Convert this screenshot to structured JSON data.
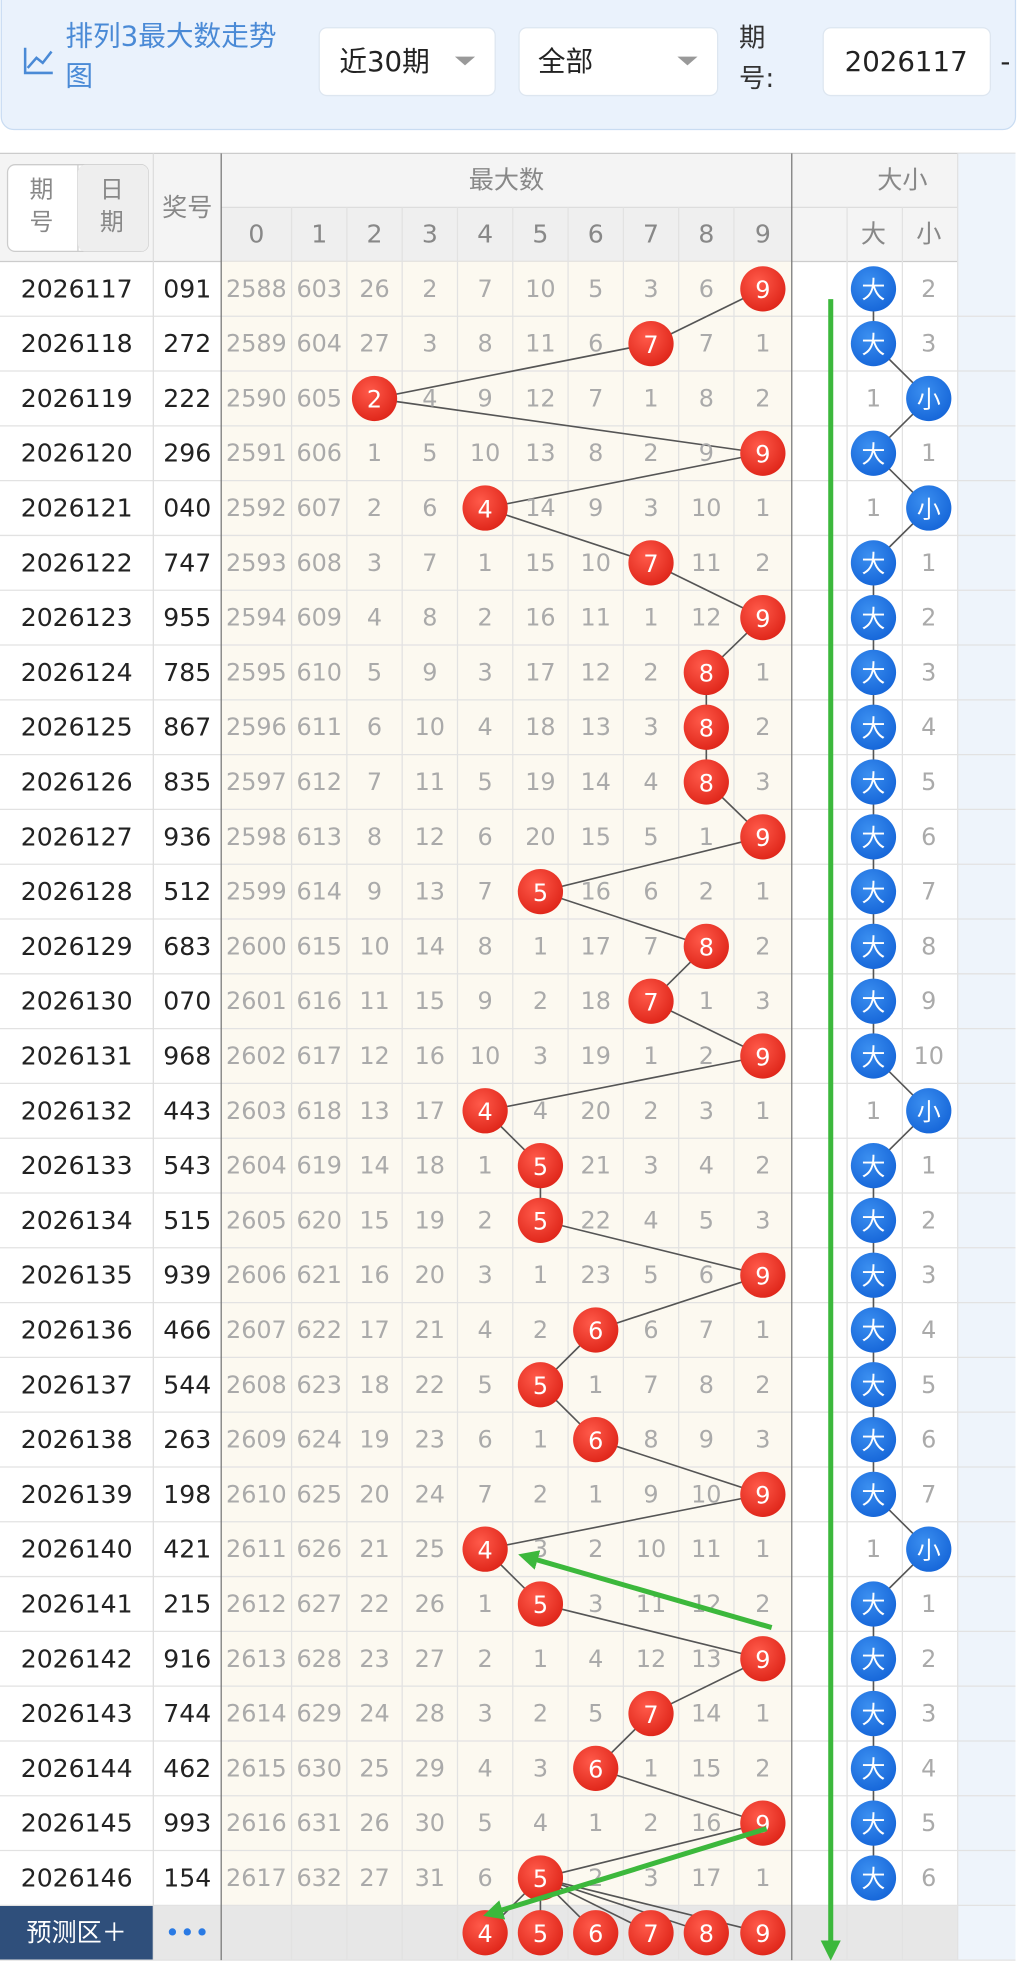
{
  "header": {
    "title": "排列3最大数走势图",
    "range_select": "近30期",
    "filter_select": "全部",
    "issue_label": "期号:",
    "issue_input": "2026117",
    "dash": "-"
  },
  "table": {
    "toggle": [
      "期号",
      "日期"
    ],
    "number_header": "奖号",
    "group_max": "最大数",
    "group_size": "大小",
    "digits": [
      0,
      1,
      2,
      3,
      4,
      5,
      6,
      7,
      8,
      9
    ],
    "size_headers": [
      "大",
      "小"
    ],
    "rows": [
      {
        "period": "2026117",
        "number": "091",
        "max": [
          2588,
          603,
          26,
          2,
          7,
          10,
          5,
          3,
          6,
          {
            "ball": 9
          }
        ],
        "size": [
          "大",
          2
        ]
      },
      {
        "period": "2026118",
        "number": "272",
        "max": [
          2589,
          604,
          27,
          3,
          8,
          11,
          6,
          {
            "ball": 7
          },
          7,
          1
        ],
        "size": [
          "大",
          3
        ]
      },
      {
        "period": "2026119",
        "number": "222",
        "max": [
          2590,
          605,
          {
            "ball": 2
          },
          4,
          9,
          12,
          7,
          1,
          8,
          2
        ],
        "size": [
          1,
          "小"
        ]
      },
      {
        "period": "2026120",
        "number": "296",
        "max": [
          2591,
          606,
          1,
          5,
          10,
          13,
          8,
          2,
          9,
          {
            "ball": 9
          }
        ],
        "size": [
          "大",
          1
        ]
      },
      {
        "period": "2026121",
        "number": "040",
        "max": [
          2592,
          607,
          2,
          6,
          {
            "ball": 4
          },
          14,
          9,
          3,
          10,
          1
        ],
        "size": [
          1,
          "小"
        ]
      },
      {
        "period": "2026122",
        "number": "747",
        "max": [
          2593,
          608,
          3,
          7,
          1,
          15,
          10,
          {
            "ball": 7
          },
          11,
          2
        ],
        "size": [
          "大",
          1
        ]
      },
      {
        "period": "2026123",
        "number": "955",
        "max": [
          2594,
          609,
          4,
          8,
          2,
          16,
          11,
          1,
          12,
          {
            "ball": 9
          }
        ],
        "size": [
          "大",
          2
        ]
      },
      {
        "period": "2026124",
        "number": "785",
        "max": [
          2595,
          610,
          5,
          9,
          3,
          17,
          12,
          2,
          {
            "ball": 8
          },
          1
        ],
        "size": [
          "大",
          3
        ]
      },
      {
        "period": "2026125",
        "number": "867",
        "max": [
          2596,
          611,
          6,
          10,
          4,
          18,
          13,
          3,
          {
            "ball": 8
          },
          2
        ],
        "size": [
          "大",
          4
        ]
      },
      {
        "period": "2026126",
        "number": "835",
        "max": [
          2597,
          612,
          7,
          11,
          5,
          19,
          14,
          4,
          {
            "ball": 8
          },
          3
        ],
        "size": [
          "大",
          5
        ]
      },
      {
        "period": "2026127",
        "number": "936",
        "max": [
          2598,
          613,
          8,
          12,
          6,
          20,
          15,
          5,
          1,
          {
            "ball": 9
          }
        ],
        "size": [
          "大",
          6
        ]
      },
      {
        "period": "2026128",
        "number": "512",
        "max": [
          2599,
          614,
          9,
          13,
          7,
          {
            "ball": 5
          },
          16,
          6,
          2,
          1
        ],
        "size": [
          "大",
          7
        ]
      },
      {
        "period": "2026129",
        "number": "683",
        "max": [
          2600,
          615,
          10,
          14,
          8,
          1,
          17,
          7,
          {
            "ball": 8
          },
          2
        ],
        "size": [
          "大",
          8
        ]
      },
      {
        "period": "2026130",
        "number": "070",
        "max": [
          2601,
          616,
          11,
          15,
          9,
          2,
          18,
          {
            "ball": 7
          },
          1,
          3
        ],
        "size": [
          "大",
          9
        ]
      },
      {
        "period": "2026131",
        "number": "968",
        "max": [
          2602,
          617,
          12,
          16,
          10,
          3,
          19,
          1,
          2,
          {
            "ball": 9
          }
        ],
        "size": [
          "大",
          10
        ]
      },
      {
        "period": "2026132",
        "number": "443",
        "max": [
          2603,
          618,
          13,
          17,
          {
            "ball": 4
          },
          4,
          20,
          2,
          3,
          1
        ],
        "size": [
          1,
          "小"
        ]
      },
      {
        "period": "2026133",
        "number": "543",
        "max": [
          2604,
          619,
          14,
          18,
          1,
          {
            "ball": 5
          },
          21,
          3,
          4,
          2
        ],
        "size": [
          "大",
          1
        ]
      },
      {
        "period": "2026134",
        "number": "515",
        "max": [
          2605,
          620,
          15,
          19,
          2,
          {
            "ball": 5
          },
          22,
          4,
          5,
          3
        ],
        "size": [
          "大",
          2
        ]
      },
      {
        "period": "2026135",
        "number": "939",
        "max": [
          2606,
          621,
          16,
          20,
          3,
          1,
          23,
          5,
          6,
          {
            "ball": 9
          }
        ],
        "size": [
          "大",
          3
        ]
      },
      {
        "period": "2026136",
        "number": "466",
        "max": [
          2607,
          622,
          17,
          21,
          4,
          2,
          {
            "ball": 6
          },
          6,
          7,
          1
        ],
        "size": [
          "大",
          4
        ]
      },
      {
        "period": "2026137",
        "number": "544",
        "max": [
          2608,
          623,
          18,
          22,
          5,
          {
            "ball": 5
          },
          1,
          7,
          8,
          2
        ],
        "size": [
          "大",
          5
        ]
      },
      {
        "period": "2026138",
        "number": "263",
        "max": [
          2609,
          624,
          19,
          23,
          6,
          1,
          {
            "ball": 6
          },
          8,
          9,
          3
        ],
        "size": [
          "大",
          6
        ]
      },
      {
        "period": "2026139",
        "number": "198",
        "max": [
          2610,
          625,
          20,
          24,
          7,
          2,
          1,
          9,
          10,
          {
            "ball": 9
          }
        ],
        "size": [
          "大",
          7
        ]
      },
      {
        "period": "2026140",
        "number": "421",
        "max": [
          2611,
          626,
          21,
          25,
          {
            "ball": 4
          },
          3,
          2,
          10,
          11,
          1
        ],
        "size": [
          1,
          "小"
        ]
      },
      {
        "period": "2026141",
        "number": "215",
        "max": [
          2612,
          627,
          22,
          26,
          1,
          {
            "ball": 5
          },
          3,
          11,
          12,
          2
        ],
        "size": [
          "大",
          1
        ]
      },
      {
        "period": "2026142",
        "number": "916",
        "max": [
          2613,
          628,
          23,
          27,
          2,
          1,
          4,
          12,
          13,
          {
            "ball": 9
          }
        ],
        "size": [
          "大",
          2
        ]
      },
      {
        "period": "2026143",
        "number": "744",
        "max": [
          2614,
          629,
          24,
          28,
          3,
          2,
          5,
          {
            "ball": 7
          },
          14,
          1
        ],
        "size": [
          "大",
          3
        ]
      },
      {
        "period": "2026144",
        "number": "462",
        "max": [
          2615,
          630,
          25,
          29,
          4,
          3,
          {
            "ball": 6
          },
          1,
          15,
          2
        ],
        "size": [
          "大",
          4
        ]
      },
      {
        "period": "2026145",
        "number": "993",
        "max": [
          2616,
          631,
          26,
          30,
          5,
          4,
          1,
          2,
          16,
          {
            "ball": 9
          }
        ],
        "size": [
          "大",
          5
        ]
      },
      {
        "period": "2026146",
        "number": "154",
        "max": [
          2617,
          632,
          27,
          31,
          6,
          {
            "ball": 5
          },
          2,
          3,
          17,
          1
        ],
        "size": [
          "大",
          6
        ]
      }
    ],
    "forecast": {
      "label": "预测区＋",
      "more": "•••",
      "balls": [
        4,
        5,
        6,
        7,
        8,
        9
      ]
    }
  }
}
